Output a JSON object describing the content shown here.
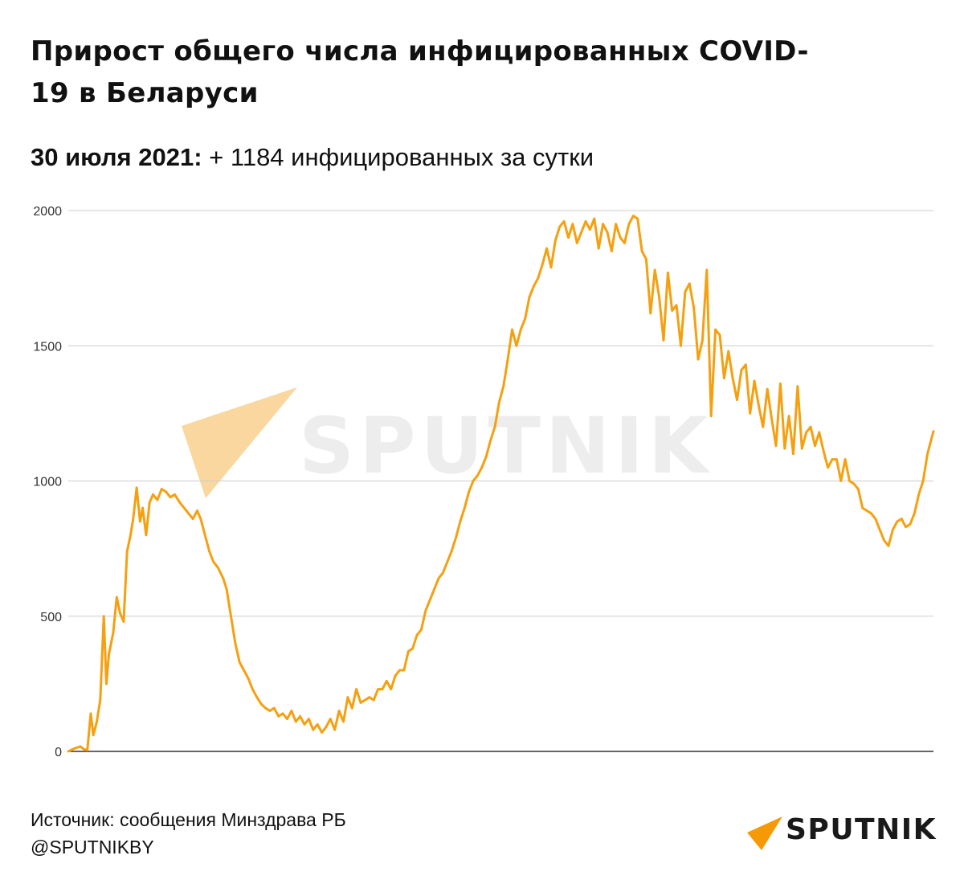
{
  "title": "Прирост общего числа инфицированных COVID-19 в Беларуси",
  "subtitle": {
    "date": "30 июля 2021:",
    "text": "+ 1184 инфицированных за сутки"
  },
  "watermark": "SPUTNIK",
  "footer": {
    "source": "Источник: сообщения Минздрава РБ",
    "handle": "@SPUTNIKBY"
  },
  "logo": {
    "text": "SPUTNIK"
  },
  "colors": {
    "line": "#F5A010",
    "logo_accent": "#F59A06",
    "grid": "#CCCCCC",
    "watermark_accent": "#FAD79E"
  },
  "chart_data": {
    "type": "line",
    "ylim": [
      0,
      2000
    ],
    "y_ticks": [
      0,
      500,
      1000,
      1500,
      2000
    ],
    "grid": true,
    "x_axis_labels": false,
    "x_range": [
      0,
      100
    ],
    "points": [
      [
        0,
        0
      ],
      [
        0.8,
        12
      ],
      [
        1.4,
        18
      ],
      [
        1.8,
        8
      ],
      [
        2.2,
        5
      ],
      [
        2.6,
        140
      ],
      [
        2.9,
        60
      ],
      [
        3.3,
        110
      ],
      [
        3.7,
        190
      ],
      [
        4.1,
        500
      ],
      [
        4.4,
        250
      ],
      [
        4.7,
        360
      ],
      [
        5.2,
        440
      ],
      [
        5.6,
        570
      ],
      [
        6.0,
        510
      ],
      [
        6.4,
        480
      ],
      [
        6.8,
        740
      ],
      [
        7.2,
        800
      ],
      [
        7.5,
        860
      ],
      [
        7.9,
        975
      ],
      [
        8.3,
        850
      ],
      [
        8.6,
        900
      ],
      [
        9.0,
        800
      ],
      [
        9.4,
        920
      ],
      [
        9.8,
        950
      ],
      [
        10.3,
        930
      ],
      [
        10.8,
        970
      ],
      [
        11.3,
        960
      ],
      [
        11.8,
        940
      ],
      [
        12.3,
        950
      ],
      [
        12.9,
        920
      ],
      [
        13.4,
        900
      ],
      [
        13.9,
        880
      ],
      [
        14.4,
        860
      ],
      [
        14.9,
        890
      ],
      [
        15.3,
        860
      ],
      [
        15.8,
        800
      ],
      [
        16.3,
        740
      ],
      [
        16.8,
        700
      ],
      [
        17.3,
        680
      ],
      [
        17.9,
        640
      ],
      [
        18.3,
        600
      ],
      [
        18.8,
        500
      ],
      [
        19.3,
        400
      ],
      [
        19.8,
        330
      ],
      [
        20.3,
        300
      ],
      [
        20.8,
        270
      ],
      [
        21.3,
        230
      ],
      [
        21.8,
        200
      ],
      [
        22.3,
        175
      ],
      [
        22.8,
        160
      ],
      [
        23.3,
        150
      ],
      [
        23.8,
        160
      ],
      [
        24.3,
        130
      ],
      [
        24.8,
        140
      ],
      [
        25.3,
        120
      ],
      [
        25.8,
        150
      ],
      [
        26.3,
        110
      ],
      [
        26.8,
        130
      ],
      [
        27.3,
        100
      ],
      [
        27.8,
        120
      ],
      [
        28.3,
        80
      ],
      [
        28.8,
        100
      ],
      [
        29.3,
        70
      ],
      [
        29.8,
        90
      ],
      [
        30.3,
        120
      ],
      [
        30.8,
        80
      ],
      [
        31.3,
        150
      ],
      [
        31.8,
        110
      ],
      [
        32.3,
        200
      ],
      [
        32.8,
        160
      ],
      [
        33.3,
        230
      ],
      [
        33.8,
        180
      ],
      [
        34.3,
        190
      ],
      [
        34.8,
        200
      ],
      [
        35.3,
        190
      ],
      [
        35.8,
        230
      ],
      [
        36.3,
        230
      ],
      [
        36.8,
        260
      ],
      [
        37.3,
        230
      ],
      [
        37.8,
        280
      ],
      [
        38.3,
        300
      ],
      [
        38.8,
        300
      ],
      [
        39.3,
        370
      ],
      [
        39.8,
        380
      ],
      [
        40.3,
        430
      ],
      [
        40.8,
        450
      ],
      [
        41.3,
        520
      ],
      [
        41.8,
        560
      ],
      [
        42.3,
        600
      ],
      [
        42.8,
        640
      ],
      [
        43.3,
        660
      ],
      [
        43.8,
        700
      ],
      [
        44.3,
        740
      ],
      [
        44.8,
        790
      ],
      [
        45.3,
        850
      ],
      [
        45.8,
        900
      ],
      [
        46.3,
        960
      ],
      [
        46.8,
        1000
      ],
      [
        47.3,
        1020
      ],
      [
        47.8,
        1050
      ],
      [
        48.3,
        1090
      ],
      [
        48.8,
        1150
      ],
      [
        49.3,
        1200
      ],
      [
        49.8,
        1290
      ],
      [
        50.3,
        1350
      ],
      [
        50.8,
        1450
      ],
      [
        51.3,
        1560
      ],
      [
        51.8,
        1500
      ],
      [
        52.3,
        1560
      ],
      [
        52.8,
        1600
      ],
      [
        53.3,
        1680
      ],
      [
        53.8,
        1720
      ],
      [
        54.3,
        1750
      ],
      [
        54.8,
        1800
      ],
      [
        55.3,
        1860
      ],
      [
        55.8,
        1790
      ],
      [
        56.3,
        1890
      ],
      [
        56.8,
        1940
      ],
      [
        57.3,
        1960
      ],
      [
        57.8,
        1900
      ],
      [
        58.3,
        1950
      ],
      [
        58.8,
        1880
      ],
      [
        59.3,
        1920
      ],
      [
        59.8,
        1960
      ],
      [
        60.3,
        1930
      ],
      [
        60.8,
        1970
      ],
      [
        61.3,
        1860
      ],
      [
        61.8,
        1950
      ],
      [
        62.3,
        1920
      ],
      [
        62.8,
        1850
      ],
      [
        63.3,
        1950
      ],
      [
        63.8,
        1900
      ],
      [
        64.3,
        1880
      ],
      [
        64.8,
        1950
      ],
      [
        65.3,
        1980
      ],
      [
        65.8,
        1970
      ],
      [
        66.3,
        1850
      ],
      [
        66.8,
        1820
      ],
      [
        67.3,
        1620
      ],
      [
        67.8,
        1780
      ],
      [
        68.3,
        1680
      ],
      [
        68.8,
        1520
      ],
      [
        69.3,
        1770
      ],
      [
        69.8,
        1630
      ],
      [
        70.3,
        1650
      ],
      [
        70.8,
        1500
      ],
      [
        71.3,
        1700
      ],
      [
        71.8,
        1730
      ],
      [
        72.3,
        1640
      ],
      [
        72.8,
        1450
      ],
      [
        73.3,
        1520
      ],
      [
        73.8,
        1780
      ],
      [
        74.3,
        1240
      ],
      [
        74.8,
        1560
      ],
      [
        75.3,
        1540
      ],
      [
        75.8,
        1380
      ],
      [
        76.3,
        1480
      ],
      [
        76.8,
        1380
      ],
      [
        77.3,
        1300
      ],
      [
        77.8,
        1410
      ],
      [
        78.3,
        1430
      ],
      [
        78.8,
        1250
      ],
      [
        79.3,
        1370
      ],
      [
        79.8,
        1280
      ],
      [
        80.3,
        1200
      ],
      [
        80.8,
        1340
      ],
      [
        81.3,
        1230
      ],
      [
        81.8,
        1130
      ],
      [
        82.3,
        1360
      ],
      [
        82.8,
        1120
      ],
      [
        83.3,
        1240
      ],
      [
        83.8,
        1100
      ],
      [
        84.3,
        1350
      ],
      [
        84.8,
        1120
      ],
      [
        85.3,
        1180
      ],
      [
        85.8,
        1200
      ],
      [
        86.3,
        1130
      ],
      [
        86.8,
        1180
      ],
      [
        87.3,
        1110
      ],
      [
        87.8,
        1050
      ],
      [
        88.3,
        1080
      ],
      [
        88.8,
        1080
      ],
      [
        89.3,
        1000
      ],
      [
        89.8,
        1080
      ],
      [
        90.3,
        1000
      ],
      [
        90.8,
        990
      ],
      [
        91.3,
        970
      ],
      [
        91.8,
        900
      ],
      [
        92.3,
        890
      ],
      [
        92.8,
        880
      ],
      [
        93.3,
        860
      ],
      [
        93.8,
        820
      ],
      [
        94.3,
        780
      ],
      [
        94.8,
        760
      ],
      [
        95.3,
        820
      ],
      [
        95.8,
        850
      ],
      [
        96.3,
        860
      ],
      [
        96.8,
        830
      ],
      [
        97.3,
        840
      ],
      [
        97.8,
        880
      ],
      [
        98.3,
        950
      ],
      [
        98.8,
        1000
      ],
      [
        99.3,
        1100
      ],
      [
        100,
        1184
      ]
    ]
  }
}
